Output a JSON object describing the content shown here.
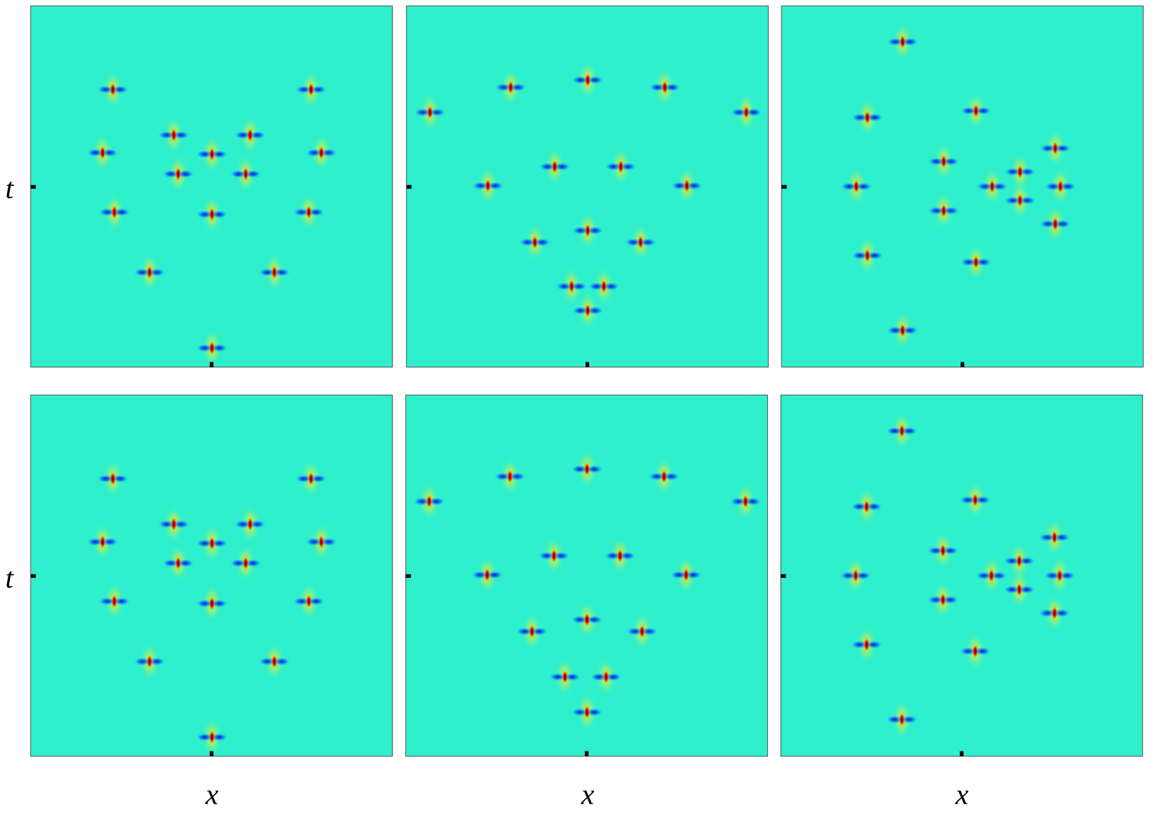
{
  "figure": {
    "row_labels": [
      "t",
      "t"
    ],
    "column_labels": [
      "x",
      "x",
      "x"
    ]
  }
}
